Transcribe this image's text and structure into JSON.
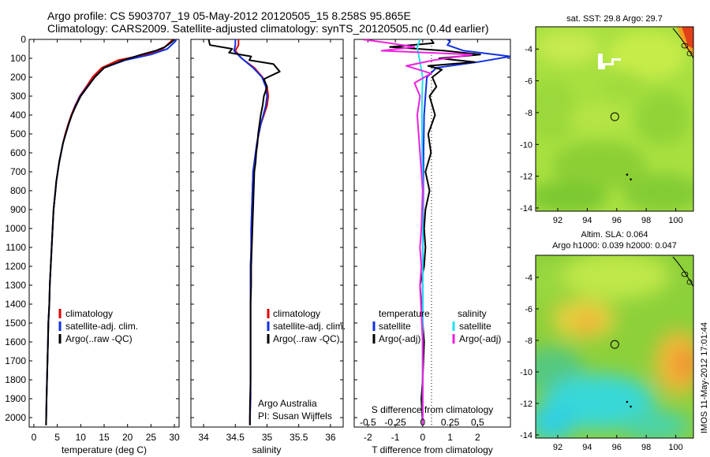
{
  "titles": {
    "line1": "Argo profile: CS 5903707_19 05-May-2012 20120505_15 8.258S 95.865E",
    "line2": "Climatology: CARS2009. Satellite-adjusted climatology: synTS_20120505.nc (0.4d earlier)"
  },
  "credit": {
    "org": "Argo Australia",
    "pi": "PI: Susan Wijffels"
  },
  "side_stamp": "IMOS 11-May-2012 17:01:44",
  "colors": {
    "climatology": "#e00000",
    "satellite": "#1030e0",
    "argo": "#000000",
    "salinity_satellite": "#20e0f0",
    "salinity_argo": "#f020e0"
  },
  "chart_data": [
    {
      "type": "line",
      "xlabel": "temperature (deg C)",
      "ylabel": "",
      "xlim": [
        -1,
        31
      ],
      "ylim": [
        2050,
        0
      ],
      "xticks": [
        0,
        5,
        10,
        15,
        20,
        25,
        30
      ],
      "yticks": [
        0,
        100,
        200,
        300,
        400,
        500,
        600,
        700,
        800,
        900,
        1000,
        1100,
        1200,
        1300,
        1400,
        1500,
        1600,
        1700,
        1800,
        1900,
        2000
      ],
      "legend": [
        "climatology",
        "satellite-adj. clim.",
        "Argo(..raw -QC)"
      ],
      "series": [
        {
          "name": "climatology",
          "color": "#e00000",
          "x": [
            29.5,
            29.3,
            27.5,
            24,
            18,
            14.5,
            12.5,
            11.2,
            9.8,
            8.8,
            8,
            7.3,
            6.7,
            6.2,
            5.8,
            5.4,
            5.1,
            4.8,
            4.6,
            4.4,
            4.2,
            4.0,
            3.8,
            3.6,
            3.4,
            3.3,
            3.1,
            3.0,
            2.9,
            2.8,
            2.7,
            2.6
          ],
          "y": [
            0,
            10,
            50,
            80,
            110,
            150,
            200,
            250,
            300,
            350,
            400,
            450,
            500,
            550,
            600,
            650,
            700,
            750,
            800,
            850,
            900,
            1000,
            1100,
            1200,
            1300,
            1400,
            1500,
            1600,
            1700,
            1800,
            1900,
            2040
          ]
        },
        {
          "name": "satellite-adj. clim.",
          "color": "#1030e0",
          "x": [
            30.4,
            30.2,
            28.5,
            25,
            19.5,
            15,
            13,
            11.4,
            9.9,
            8.9,
            8.1,
            7.4,
            6.8,
            6.2,
            5.8,
            5.4,
            5.1,
            4.8,
            4.6,
            4.4,
            4.2,
            4.0,
            3.8,
            3.6,
            3.4,
            3.3,
            3.1,
            3.0,
            2.9,
            2.8,
            2.7,
            2.6
          ],
          "y": [
            0,
            10,
            50,
            80,
            110,
            150,
            200,
            250,
            300,
            350,
            400,
            450,
            500,
            550,
            600,
            650,
            700,
            750,
            800,
            850,
            900,
            1000,
            1100,
            1200,
            1300,
            1400,
            1500,
            1600,
            1700,
            1800,
            1900,
            2040
          ]
        },
        {
          "name": "Argo(..raw -QC)",
          "color": "#000000",
          "x": [
            29.8,
            29.6,
            28,
            26,
            23,
            19,
            15,
            13,
            11.5,
            10,
            9,
            8.1,
            7.4,
            6.8,
            6.2,
            5.8,
            5.4,
            5.1,
            4.8,
            4.6,
            4.4,
            4.2,
            4.0,
            3.8,
            3.6,
            3.4,
            3.3,
            3.1,
            3.0,
            2.9,
            2.8,
            2.7,
            2.6
          ],
          "y": [
            0,
            10,
            40,
            60,
            80,
            110,
            150,
            200,
            250,
            300,
            350,
            400,
            450,
            500,
            550,
            600,
            650,
            700,
            750,
            800,
            850,
            900,
            1000,
            1100,
            1200,
            1300,
            1400,
            1500,
            1600,
            1700,
            1800,
            1900,
            2040
          ]
        }
      ]
    },
    {
      "type": "line",
      "xlabel": "salinity",
      "xlim": [
        33.8,
        36.2
      ],
      "ylim": [
        2050,
        0
      ],
      "xticks": [
        34,
        34.5,
        35,
        35.5,
        36
      ],
      "legend": [
        "climatology",
        "satellite-adj. clim.",
        "Argo(..raw -QC)"
      ],
      "series": [
        {
          "name": "climatology",
          "color": "#e00000",
          "x": [
            34.55,
            34.55,
            34.5,
            34.6,
            34.8,
            34.93,
            35.0,
            35.02,
            35.0,
            34.95,
            34.9,
            34.87,
            34.84,
            34.82,
            34.8,
            34.78,
            34.77,
            34.76,
            34.75,
            34.75,
            34.74,
            34.74,
            34.74,
            34.74,
            34.74,
            34.74,
            34.74,
            34.74,
            34.73,
            34.73
          ],
          "y": [
            0,
            30,
            60,
            100,
            150,
            200,
            250,
            300,
            350,
            400,
            450,
            500,
            550,
            600,
            650,
            700,
            800,
            900,
            1000,
            1100,
            1200,
            1300,
            1400,
            1500,
            1600,
            1700,
            1800,
            1900,
            2000,
            2040
          ]
        },
        {
          "name": "satellite-adj. clim.",
          "color": "#1030e0",
          "x": [
            34.5,
            34.5,
            34.48,
            34.6,
            34.78,
            34.92,
            34.98,
            35.0,
            34.98,
            34.94,
            34.9,
            34.87,
            34.84,
            34.82,
            34.8,
            34.78,
            34.77,
            34.76,
            34.75,
            34.75,
            34.74,
            34.74,
            34.74,
            34.74,
            34.74,
            34.74,
            34.74,
            34.74,
            34.73,
            34.73
          ],
          "y": [
            0,
            30,
            60,
            100,
            150,
            200,
            250,
            300,
            350,
            400,
            450,
            500,
            550,
            600,
            650,
            700,
            800,
            900,
            1000,
            1100,
            1200,
            1300,
            1400,
            1500,
            1600,
            1700,
            1800,
            1900,
            2000,
            2040
          ]
        },
        {
          "name": "Argo(..raw -QC)",
          "color": "#000000",
          "x": [
            34.08,
            34.1,
            34.45,
            34.4,
            34.75,
            34.72,
            35.1,
            35.2,
            34.95,
            35.0,
            34.95,
            34.93,
            34.9,
            34.88,
            34.86,
            34.85,
            34.83,
            34.82,
            34.8,
            34.79,
            34.78,
            34.77,
            34.76,
            34.75,
            34.75,
            34.74,
            34.74,
            34.74,
            34.74,
            34.73,
            34.73
          ],
          "y": [
            0,
            30,
            50,
            70,
            90,
            110,
            130,
            170,
            210,
            250,
            300,
            350,
            400,
            450,
            500,
            550,
            600,
            650,
            700,
            800,
            900,
            1000,
            1100,
            1200,
            1300,
            1400,
            1500,
            1600,
            1800,
            1950,
            2040
          ]
        }
      ]
    },
    {
      "type": "line",
      "xlabel": "T difference from climatology",
      "xlabel_top": "S difference from climatology",
      "xlim": [
        -2.5,
        3.2
      ],
      "ylim": [
        2050,
        0
      ],
      "xticks": [
        -2,
        -1,
        0,
        1,
        2
      ],
      "xticks_top_labels": [
        "-0.5",
        "-0.25",
        "0",
        "0.25",
        "0.5"
      ],
      "legend_header": [
        "temperature",
        "salinity"
      ],
      "legend": [
        "satellite",
        "Argo(-adj)",
        "satellite",
        "Argo(-adj)"
      ],
      "series": [
        {
          "name": "satellite",
          "group": "temperature",
          "color": "#1030e0",
          "x": [
            0.9,
            1.0,
            0.9,
            1.5,
            3.2,
            2.0,
            0.5,
            0.15,
            0.1,
            0.05,
            0.03,
            0.02,
            0.01,
            0.0,
            0.0,
            0.0,
            0.0,
            0.0
          ],
          "y": [
            0,
            10,
            30,
            60,
            90,
            120,
            150,
            200,
            300,
            400,
            600,
            800,
            1000,
            1200,
            1400,
            1600,
            1800,
            2040
          ]
        },
        {
          "name": "Argo(-adj)",
          "group": "temperature",
          "color": "#000000",
          "x": [
            0.3,
            0.4,
            -1.2,
            0.8,
            2.1,
            0.6,
            1.9,
            0.2,
            0.7,
            0.35,
            0.5,
            0.25,
            0.45,
            0.2,
            0.3,
            0.1,
            0.25,
            0.1,
            0.05,
            0.1,
            0.05,
            -0.1,
            0.0,
            0.05,
            0.0,
            -0.05,
            0.0
          ],
          "y": [
            0,
            20,
            40,
            60,
            80,
            100,
            120,
            140,
            160,
            200,
            250,
            300,
            400,
            500,
            600,
            700,
            800,
            900,
            1000,
            1100,
            1200,
            1300,
            1500,
            1600,
            1800,
            1900,
            2040
          ]
        },
        {
          "name": "satellite",
          "group": "salinity",
          "color": "#20e0f0",
          "x": [
            -0.1,
            -0.2,
            -0.15,
            -0.1,
            -0.05,
            0.0,
            -0.02,
            -0.03,
            -0.02,
            0.0,
            0.0,
            0.0,
            0.0,
            0.0
          ],
          "y": [
            0,
            40,
            80,
            120,
            160,
            200,
            300,
            400,
            600,
            800,
            1200,
            1600,
            1900,
            2040
          ]
        },
        {
          "name": "Argo(-adj)",
          "group": "salinity",
          "color": "#f020e0",
          "x": [
            -2.2,
            -1.2,
            -0.3,
            -1.5,
            1.8,
            0.4,
            -0.6,
            0.3,
            -0.3,
            -0.1,
            -0.2,
            -0.1,
            0.0,
            -0.05,
            -0.1,
            -0.05,
            -0.1,
            0.0,
            0.0
          ],
          "y": [
            0,
            20,
            40,
            60,
            80,
            110,
            140,
            180,
            230,
            300,
            400,
            600,
            800,
            1000,
            1100,
            1200,
            1300,
            1600,
            2040
          ]
        }
      ]
    },
    {
      "type": "heatmap",
      "title": "sat. SST: 29.8  Argo: 29.7",
      "xlim": [
        90.5,
        101.2
      ],
      "ylim": [
        -14.2,
        -2.6
      ],
      "xticks": [
        92,
        94,
        96,
        98,
        100
      ],
      "yticks": [
        -4,
        -6,
        -8,
        -10,
        -12,
        -14
      ],
      "argo_position": [
        95.865,
        -8.258
      ]
    },
    {
      "type": "heatmap",
      "title": "Altim. SLA: 0.064",
      "subtitle": "Argo h1000: 0.039 h2000: 0.047",
      "xlim": [
        90.5,
        101.2
      ],
      "ylim": [
        -14.2,
        -2.6
      ],
      "xticks": [
        92,
        94,
        96,
        98,
        100
      ],
      "yticks": [
        -4,
        -6,
        -8,
        -10,
        -12,
        -14
      ],
      "argo_position": [
        95.865,
        -8.258
      ]
    }
  ]
}
